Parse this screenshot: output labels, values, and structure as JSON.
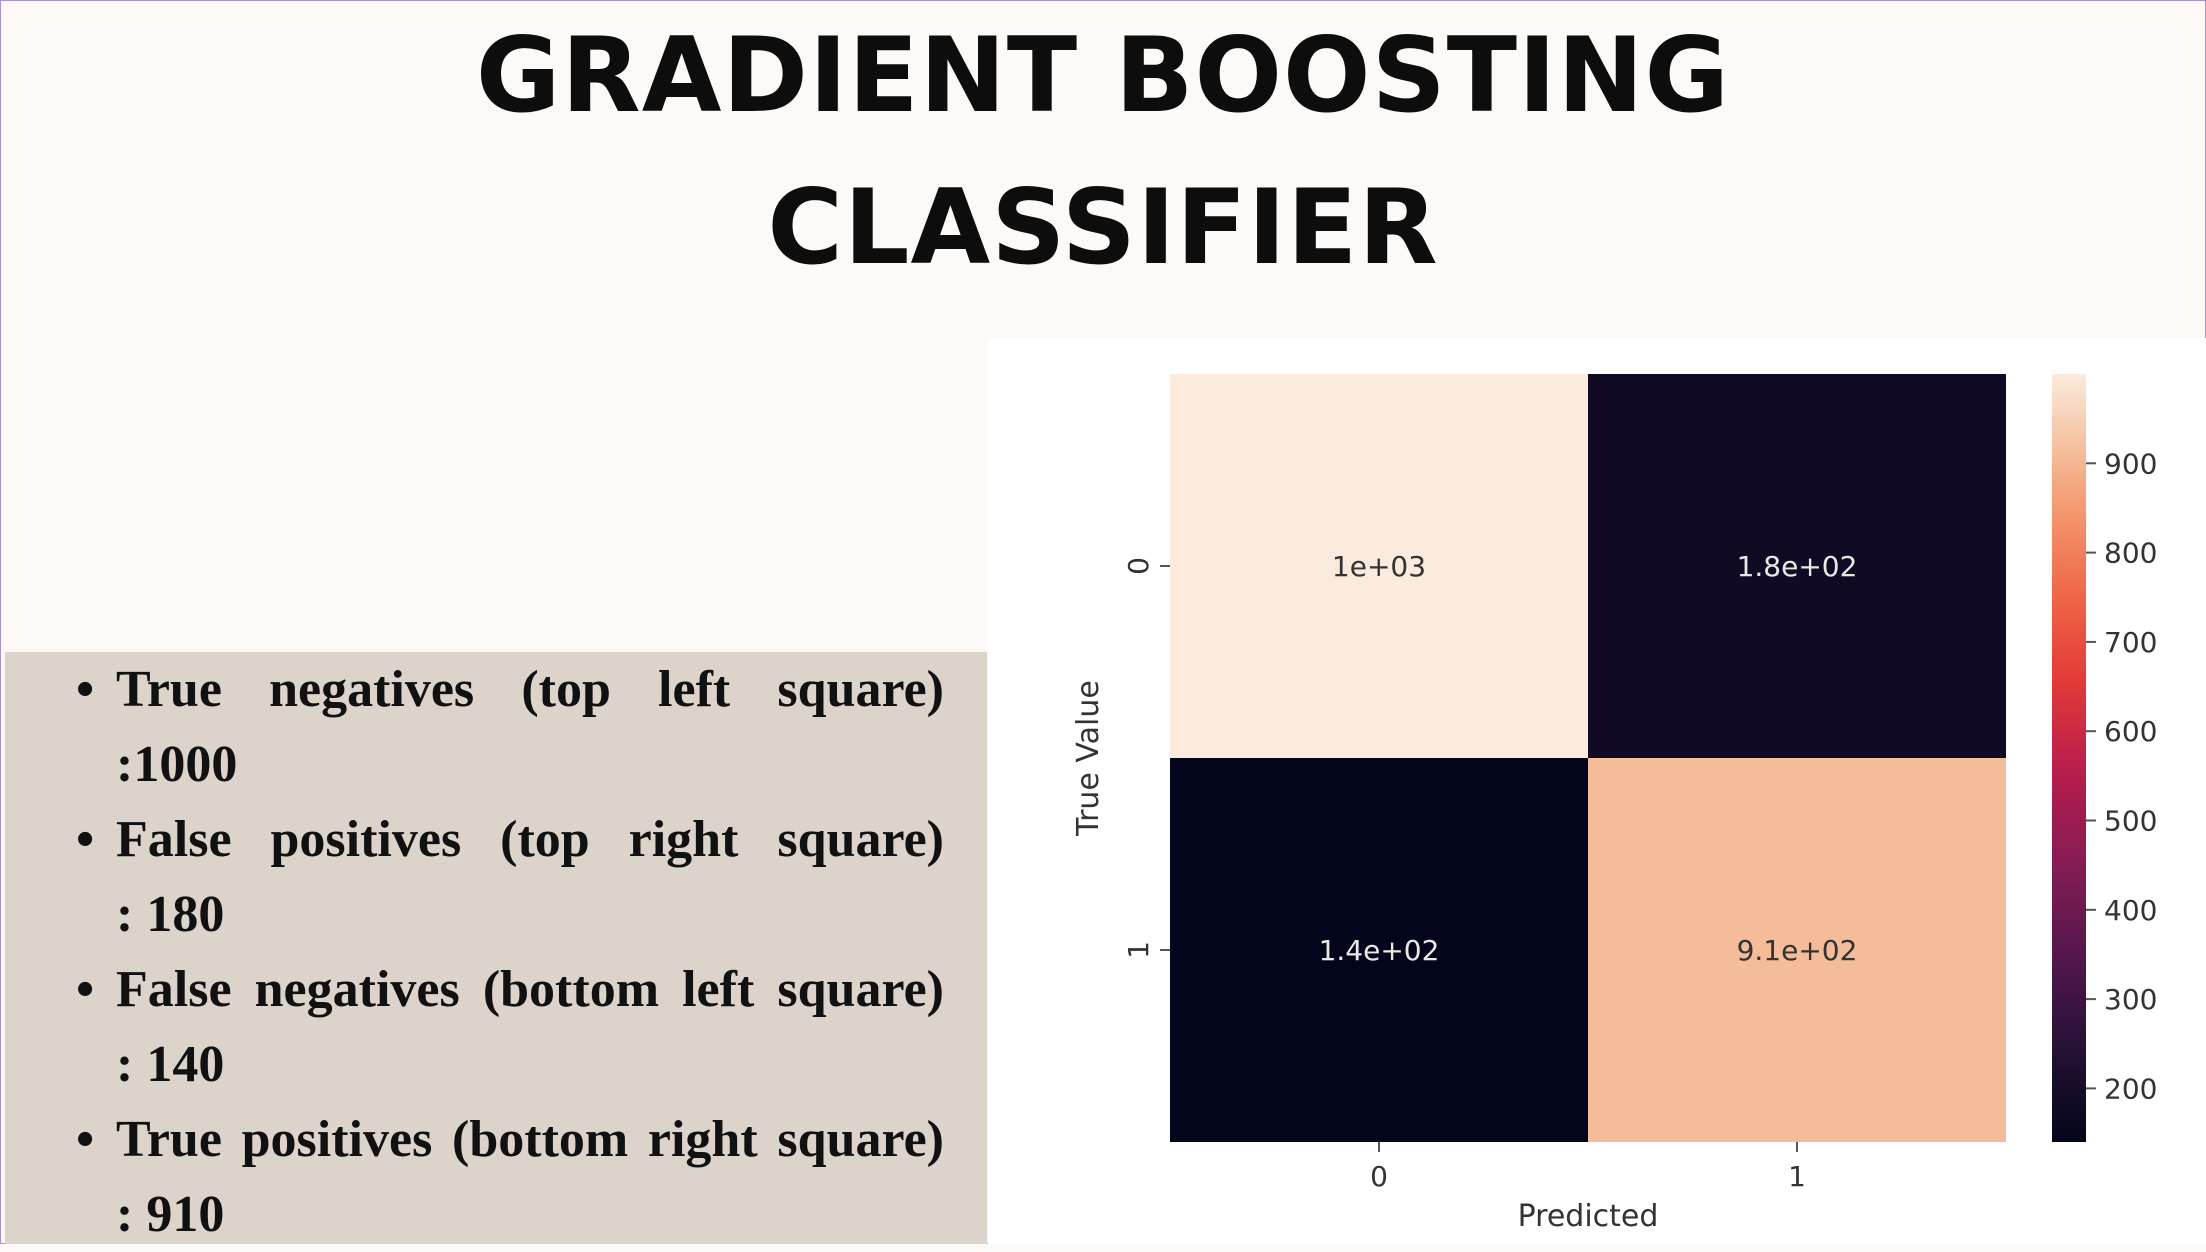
{
  "title": {
    "line1": "GRADIENT BOOSTING",
    "line2": "CLASSIFIER"
  },
  "bullets": [
    {
      "line1": "True negatives (top left square)",
      "line2": ":1000"
    },
    {
      "line1": "False positives (top right square)",
      "line2": ": 180"
    },
    {
      "line1": "False negatives (bottom left square)",
      "line2": ": 140"
    },
    {
      "line1": "True positives (bottom right square)",
      "line2": ": 910"
    }
  ],
  "chart_data": {
    "type": "heatmap",
    "x_categories": [
      "0",
      "1"
    ],
    "y_categories": [
      "0",
      "1"
    ],
    "xlabel": "Predicted",
    "ylabel": "True Value",
    "values": [
      [
        1000,
        180
      ],
      [
        140,
        910
      ]
    ],
    "annotations": [
      [
        "1e+03",
        "1.8e+02"
      ],
      [
        "1.4e+02",
        "9.1e+02"
      ]
    ],
    "colorbar": {
      "min": 140,
      "max": 1000,
      "ticks": [
        200,
        300,
        400,
        500,
        600,
        700,
        800,
        900
      ],
      "tick_labels": [
        "200",
        "300",
        "400",
        "500",
        "600",
        "700",
        "800",
        "900"
      ]
    },
    "colormap": "rocket",
    "colors": {
      "low": "#03051a",
      "high": "#faebdd"
    }
  }
}
